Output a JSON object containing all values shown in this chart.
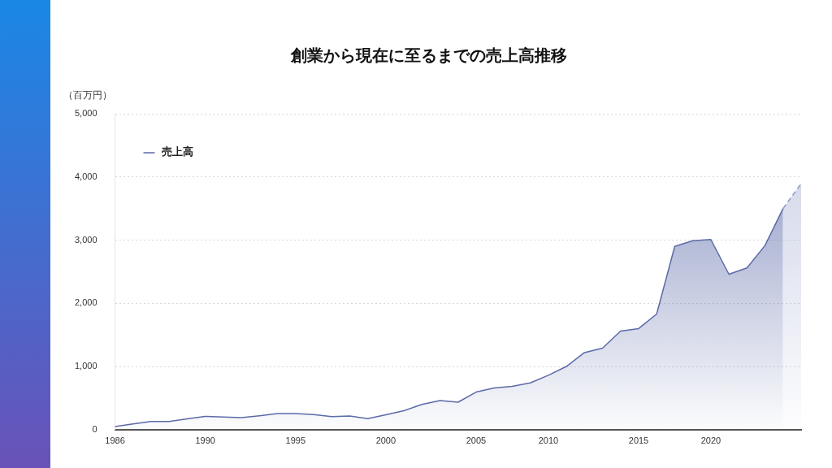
{
  "chart_data": {
    "type": "area",
    "title": "創業から現在に至るまでの売上高推移",
    "ylabel": "（百万円）",
    "categories": [
      "1986",
      null,
      null,
      null,
      null,
      "1990",
      null,
      null,
      null,
      null,
      "1995",
      null,
      null,
      null,
      null,
      "2000",
      null,
      null,
      null,
      null,
      "2005",
      null,
      null,
      null,
      "2010",
      null,
      null,
      null,
      null,
      "2015",
      null,
      null,
      null,
      "2020",
      null,
      null,
      null,
      null,
      null
    ],
    "series": [
      {
        "name": "売上高",
        "color": "#5b6aa8",
        "values": [
          50,
          90,
          130,
          130,
          170,
          210,
          200,
          190,
          220,
          255,
          255,
          240,
          205,
          215,
          175,
          235,
          300,
          400,
          460,
          435,
          595,
          660,
          685,
          740,
          860,
          1000,
          1220,
          1290,
          1560,
          1600,
          1830,
          2900,
          2990,
          3010,
          2460,
          2560,
          2915,
          3500,
          null
        ]
      },
      {
        "color": "#8e99c8",
        "line_style": "dashed",
        "values": [
          null,
          null,
          null,
          null,
          null,
          null,
          null,
          null,
          null,
          null,
          null,
          null,
          null,
          null,
          null,
          null,
          null,
          null,
          null,
          null,
          null,
          null,
          null,
          null,
          null,
          null,
          null,
          null,
          null,
          null,
          null,
          null,
          null,
          null,
          null,
          null,
          null,
          3500,
          3895
        ]
      }
    ],
    "ylim": [
      0,
      5000
    ],
    "yticks": [
      0,
      {
        "value": 1000,
        "label": "1,000"
      },
      {
        "value": 2000,
        "label": "2,000"
      },
      {
        "value": 3000,
        "label": "3,000"
      },
      {
        "value": 4000,
        "label": "4,000"
      },
      {
        "value": 5000,
        "label": "5,000"
      }
    ],
    "grid": "y",
    "legend": "top left",
    "marker": "none",
    "line_style": "solid"
  }
}
